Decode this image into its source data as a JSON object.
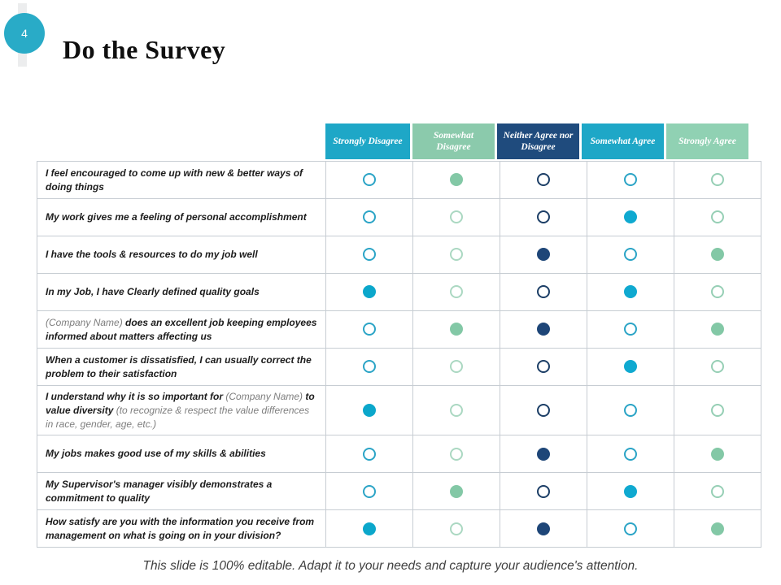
{
  "slide": {
    "page_number": "4",
    "title": "Do the Survey",
    "footer": "This slide is 100% editable. Adapt it to your needs and capture your audience's attention.",
    "badge_color": "#29abc7"
  },
  "table": {
    "columns": [
      {
        "label": "Strongly Disagree",
        "bg": "#1ea7c7",
        "text_color": "#ffffff",
        "circle_outline": "#2ba4c6",
        "circle_fill": "#0ba7cb"
      },
      {
        "label": "Somewhat Disagree",
        "bg": "#8bcaac",
        "text_color": "#ffffff",
        "circle_outline": "#abd8c2",
        "circle_fill": "#83c8a6"
      },
      {
        "label": "Neither Agree nor Disagree",
        "bg": "#1f4b7d",
        "text_color": "#ffffff",
        "circle_outline": "#1c3e66",
        "circle_fill": "#1e4678"
      },
      {
        "label": "Somewhat Agree",
        "bg": "#1ea7c7",
        "text_color": "#ffffff",
        "circle_outline": "#2ba4c6",
        "circle_fill": "#0fa9d0"
      },
      {
        "label": "Strongly Agree",
        "bg": "#90d1b3",
        "text_color": "#ffffff",
        "circle_outline": "#96cfb5",
        "circle_fill": "#83c8a6"
      }
    ],
    "rows": [
      {
        "question": [
          {
            "text": "I feel encouraged to come up with new & better ways of doing things",
            "muted": false
          }
        ],
        "answers": [
          "outline",
          "filled",
          "outline",
          "outline",
          "outline"
        ]
      },
      {
        "question": [
          {
            "text": "My work gives me a feeling of personal accomplishment",
            "muted": false
          }
        ],
        "answers": [
          "outline",
          "outline",
          "outline",
          "filled",
          "outline"
        ]
      },
      {
        "question": [
          {
            "text": "I have the tools & resources to do my job well",
            "muted": false
          }
        ],
        "answers": [
          "outline",
          "outline",
          "filled",
          "outline",
          "filled"
        ]
      },
      {
        "question": [
          {
            "text": "In my Job, I have Clearly defined quality goals",
            "muted": false
          }
        ],
        "answers": [
          "filled",
          "outline",
          "outline",
          "filled",
          "outline"
        ]
      },
      {
        "question": [
          {
            "text": "(Company Name)",
            "muted": true
          },
          {
            "text": " does an excellent job keeping employees informed about matters affecting us",
            "muted": false
          }
        ],
        "answers": [
          "outline",
          "filled",
          "filled",
          "outline",
          "filled"
        ]
      },
      {
        "question": [
          {
            "text": "When a customer is dissatisfied, I can usually correct the problem to their satisfaction",
            "muted": false
          }
        ],
        "answers": [
          "outline",
          "outline",
          "outline",
          "filled",
          "outline"
        ]
      },
      {
        "question": [
          {
            "text": "I understand why it is so important for ",
            "muted": false
          },
          {
            "text": "(Company Name)",
            "muted": true
          },
          {
            "text": " to value diversity ",
            "muted": false
          },
          {
            "text": "(to recognize & respect the value differences in race, gender, age, etc.)",
            "muted": true
          }
        ],
        "answers": [
          "filled",
          "outline",
          "outline",
          "outline",
          "outline"
        ]
      },
      {
        "question": [
          {
            "text": "My jobs makes good use of my skills & abilities",
            "muted": false
          }
        ],
        "answers": [
          "outline",
          "outline",
          "filled",
          "outline",
          "filled"
        ]
      },
      {
        "question": [
          {
            "text": "My Supervisor's manager visibly demonstrates a commitment to quality",
            "muted": false
          }
        ],
        "answers": [
          "outline",
          "filled",
          "outline",
          "filled",
          "outline"
        ]
      },
      {
        "question": [
          {
            "text": "How satisfy are you with the information you receive from management on what is going on in your division?",
            "muted": false
          }
        ],
        "answers": [
          "filled",
          "outline",
          "filled",
          "outline",
          "filled"
        ]
      }
    ]
  }
}
